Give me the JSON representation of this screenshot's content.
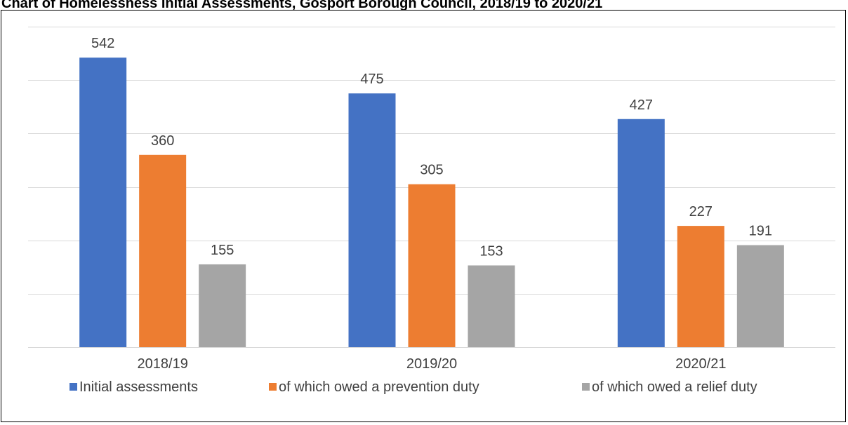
{
  "chart_data": {
    "type": "bar",
    "title": "Chart of Homelessness Initial Assessments, Gosport Borough Council, 2018/19 to 2020/21",
    "categories": [
      "2018/19",
      "2019/20",
      "2020/21"
    ],
    "series": [
      {
        "name": "Initial assessments",
        "color": "#4472C4",
        "values": [
          542,
          475,
          427
        ]
      },
      {
        "name": "of which owed a prevention duty",
        "color": "#ED7D31",
        "values": [
          360,
          305,
          227
        ]
      },
      {
        "name": "of which owed a relief duty",
        "color": "#A5A5A5",
        "values": [
          155,
          153,
          191
        ]
      }
    ],
    "ylim": [
      0,
      600
    ],
    "y_axis_labels_shown": false,
    "grid": true,
    "gridline_step": 100,
    "legend_position": "bottom"
  }
}
